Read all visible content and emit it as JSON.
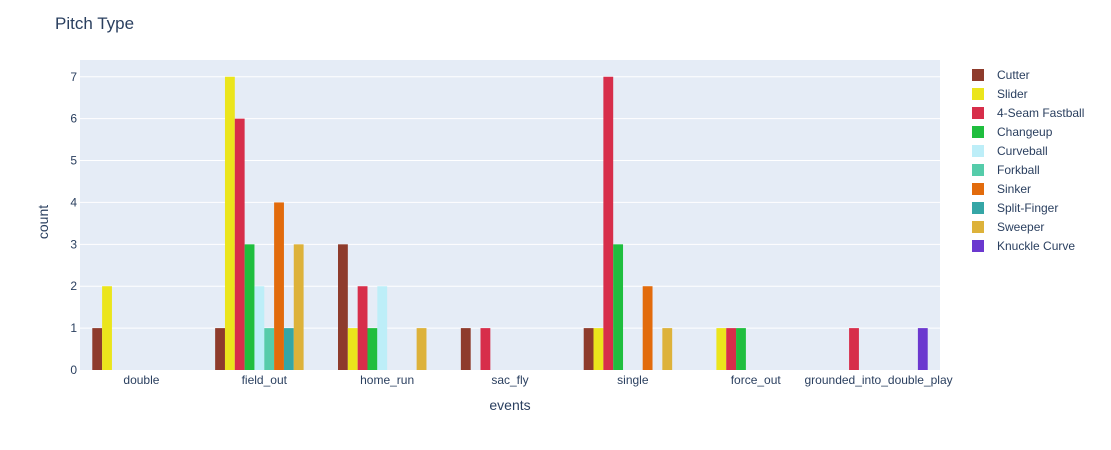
{
  "chart_data": {
    "type": "bar",
    "title": "Pitch Type",
    "xlabel": "events",
    "ylabel": "count",
    "ylim": [
      0,
      7.4
    ],
    "yticks": [
      0,
      1,
      2,
      3,
      4,
      5,
      6,
      7
    ],
    "grid": true,
    "legend_position": "right",
    "categories": [
      "double",
      "field_out",
      "home_run",
      "sac_fly",
      "single",
      "force_out",
      "grounded_into_double_play"
    ],
    "series": [
      {
        "name": "Cutter",
        "color": "#8e3b2c",
        "values": [
          1,
          1,
          3,
          1,
          1,
          null,
          null
        ]
      },
      {
        "name": "Slider",
        "color": "#ebe51c",
        "values": [
          2,
          7,
          1,
          null,
          1,
          1,
          null
        ]
      },
      {
        "name": "4-Seam Fastball",
        "color": "#d72e4a",
        "values": [
          null,
          6,
          2,
          1,
          7,
          1,
          1
        ]
      },
      {
        "name": "Changeup",
        "color": "#1fbe3e",
        "values": [
          null,
          3,
          1,
          null,
          3,
          1,
          null
        ]
      },
      {
        "name": "Curveball",
        "color": "#bdeef8",
        "values": [
          null,
          2,
          2,
          null,
          null,
          null,
          null
        ]
      },
      {
        "name": "Forkball",
        "color": "#55ccaa",
        "values": [
          null,
          1,
          null,
          null,
          null,
          null,
          null
        ]
      },
      {
        "name": "Sinker",
        "color": "#e26b0c",
        "values": [
          null,
          4,
          null,
          null,
          2,
          null,
          null
        ]
      },
      {
        "name": "Split-Finger",
        "color": "#35a6a6",
        "values": [
          null,
          1,
          null,
          null,
          null,
          null,
          null
        ]
      },
      {
        "name": "Sweeper",
        "color": "#ddb23a",
        "values": [
          null,
          3,
          1,
          null,
          1,
          null,
          null
        ]
      },
      {
        "name": "Knuckle Curve",
        "color": "#6b38cf",
        "values": [
          null,
          null,
          null,
          null,
          null,
          null,
          1
        ]
      }
    ]
  }
}
